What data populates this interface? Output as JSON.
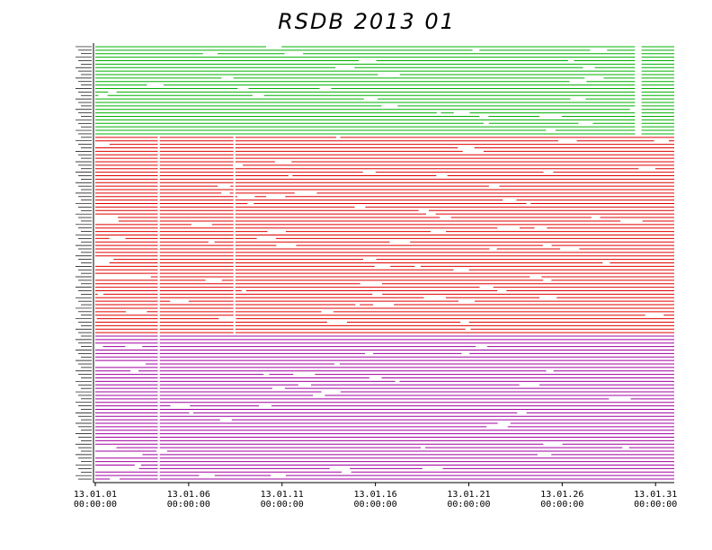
{
  "chart_data": {
    "type": "bar",
    "title": "RSDB  2013  01",
    "xlabel": "",
    "ylabel": "",
    "x_range": [
      "2013-01-01 00:00:00",
      "2013-02-01 00:00:00"
    ],
    "x_ticks": [
      {
        "date": "13.01.01",
        "time": "00:00:00"
      },
      {
        "date": "13.01.06",
        "time": "00:00:00"
      },
      {
        "date": "13.01.11",
        "time": "00:00:00"
      },
      {
        "date": "13.01.16",
        "time": "00:00:00"
      },
      {
        "date": "13.01.21",
        "time": "00:00:00"
      },
      {
        "date": "13.01.26",
        "time": "00:00:00"
      },
      {
        "date": "13.01.31",
        "time": "00:00:00"
      }
    ],
    "groups": [
      {
        "color": "#00b000",
        "rows": 26,
        "common_gaps_days": [
          [
            28.9,
            29.25
          ]
        ]
      },
      {
        "color": "#e00000",
        "rows": 57,
        "common_gaps_days": [
          [
            3.35,
            3.45
          ],
          [
            7.4,
            7.5
          ]
        ]
      },
      {
        "color": "#a000a0",
        "rows": 42,
        "common_gaps_days": [
          [
            3.35,
            3.45
          ]
        ]
      }
    ],
    "grid": false
  }
}
